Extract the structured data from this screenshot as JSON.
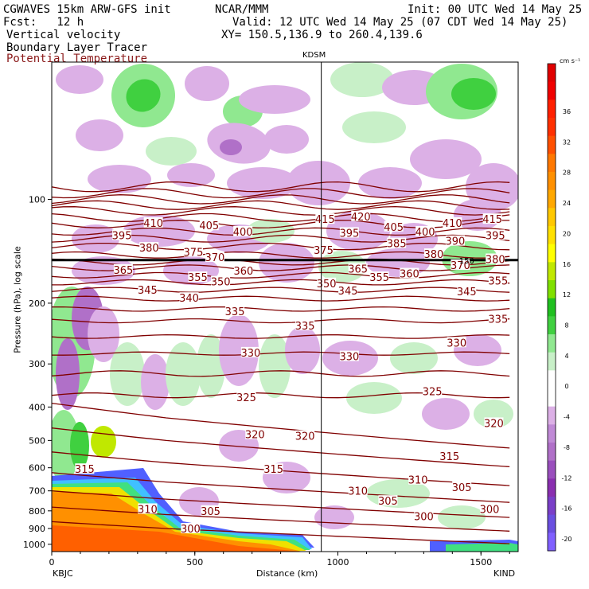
{
  "header": {
    "model": "CGWAVES 15km ARW-GFS init",
    "org": "NCAR/MMM",
    "init": "Init: 00 UTC Wed 14 May 25",
    "fcst": "Fcst:   12 h",
    "valid": "Valid: 12 UTC Wed 14 May 25 (07 CDT Wed 14 May 25)",
    "field1": "Vertical velocity",
    "field2": "Boundary Layer Tracer",
    "field3": "Potential Temperature",
    "xy": "XY= 150.5,136.9 to 260.4,139.6",
    "field3_color": "#8b1a1a"
  },
  "chart_data": {
    "type": "heatmap",
    "title": "",
    "xlabel": "Distance (km)",
    "ylabel": "Pressure (hPa), log scale",
    "x_ticks": [
      "0",
      "500",
      "1000",
      "1500"
    ],
    "x_tick_values": [
      0,
      500,
      1000,
      1500
    ],
    "y_ticks": [
      "100",
      "200",
      "300",
      "400",
      "500",
      "600",
      "700",
      "800",
      "900",
      "1000"
    ],
    "y_tick_values": [
      100,
      200,
      300,
      400,
      500,
      600,
      700,
      800,
      900,
      1000
    ],
    "xlim": [
      0,
      1630
    ],
    "ylim_log_pressure": [
      40,
      1050
    ],
    "y_scale": "log",
    "left_endpoint": "KBJC",
    "right_endpoint": "KIND",
    "marker_label": "KDSM",
    "marker_x": 942,
    "tropopause_label": "150",
    "theta_labels": [
      {
        "v": "410",
        "x": 355,
        "p": 117
      },
      {
        "v": "405",
        "x": 550,
        "p": 119
      },
      {
        "v": "400",
        "x": 668,
        "p": 124
      },
      {
        "v": "395",
        "x": 245,
        "p": 127
      },
      {
        "v": "380",
        "x": 340,
        "p": 138
      },
      {
        "v": "375",
        "x": 495,
        "p": 142
      },
      {
        "v": "370",
        "x": 570,
        "p": 147
      },
      {
        "v": "365",
        "x": 250,
        "p": 160
      },
      {
        "v": "360",
        "x": 670,
        "p": 161
      },
      {
        "v": "355",
        "x": 510,
        "p": 168
      },
      {
        "v": "350",
        "x": 590,
        "p": 173
      },
      {
        "v": "345",
        "x": 335,
        "p": 183
      },
      {
        "v": "340",
        "x": 480,
        "p": 193
      },
      {
        "v": "335",
        "x": 640,
        "p": 211
      },
      {
        "v": "330",
        "x": 695,
        "p": 278
      },
      {
        "v": "325",
        "x": 680,
        "p": 375
      },
      {
        "v": "320",
        "x": 710,
        "p": 480
      },
      {
        "v": "315",
        "x": 775,
        "p": 605
      },
      {
        "v": "315",
        "x": 115,
        "p": 605
      },
      {
        "v": "310",
        "x": 335,
        "p": 790
      },
      {
        "v": "305",
        "x": 555,
        "p": 800
      },
      {
        "v": "300",
        "x": 485,
        "p": 900
      },
      {
        "v": "415",
        "x": 955,
        "p": 114
      },
      {
        "v": "420",
        "x": 1080,
        "p": 112
      },
      {
        "v": "395",
        "x": 1040,
        "p": 125
      },
      {
        "v": "405",
        "x": 1195,
        "p": 120
      },
      {
        "v": "400",
        "x": 1305,
        "p": 124
      },
      {
        "v": "385",
        "x": 1205,
        "p": 134
      },
      {
        "v": "375",
        "x": 950,
        "p": 140
      },
      {
        "v": "365",
        "x": 1070,
        "p": 159
      },
      {
        "v": "355",
        "x": 1145,
        "p": 168
      },
      {
        "v": "360",
        "x": 1250,
        "p": 164
      },
      {
        "v": "345",
        "x": 1035,
        "p": 184
      },
      {
        "v": "350",
        "x": 960,
        "p": 175
      },
      {
        "v": "335",
        "x": 885,
        "p": 232
      },
      {
        "v": "330",
        "x": 1040,
        "p": 285
      },
      {
        "v": "325",
        "x": 1330,
        "p": 360
      },
      {
        "v": "320",
        "x": 885,
        "p": 485
      },
      {
        "v": "315",
        "x": 1390,
        "p": 555
      },
      {
        "v": "310",
        "x": 1070,
        "p": 700
      },
      {
        "v": "310",
        "x": 1280,
        "p": 650
      },
      {
        "v": "305",
        "x": 1175,
        "p": 748
      },
      {
        "v": "300",
        "x": 1300,
        "p": 830
      },
      {
        "v": "410",
        "x": 1400,
        "p": 117
      },
      {
        "v": "415",
        "x": 1540,
        "p": 114
      },
      {
        "v": "390",
        "x": 1410,
        "p": 132
      },
      {
        "v": "395",
        "x": 1550,
        "p": 127
      },
      {
        "v": "380",
        "x": 1335,
        "p": 144
      },
      {
        "v": "370",
        "x": 1428,
        "p": 155
      },
      {
        "v": "380",
        "x": 1550,
        "p": 149
      },
      {
        "v": "355",
        "x": 1560,
        "p": 172
      },
      {
        "v": "345",
        "x": 1450,
        "p": 185
      },
      {
        "v": "335",
        "x": 1560,
        "p": 222
      },
      {
        "v": "330",
        "x": 1415,
        "p": 260
      },
      {
        "v": "320",
        "x": 1545,
        "p": 445
      },
      {
        "v": "305",
        "x": 1433,
        "p": 683
      },
      {
        "v": "300",
        "x": 1530,
        "p": 790
      },
      {
        "v": "325",
        "x": 1675,
        "p": 345
      }
    ],
    "colorbar": {
      "unit": "cm s⁻¹",
      "labels": [
        "36",
        "32",
        "28",
        "24",
        "20",
        "16",
        "12",
        "8",
        "4",
        "0",
        "-4",
        "-8",
        "-12",
        "-16",
        "-20"
      ],
      "colors": [
        "#8060ff",
        "#6a4fe0",
        "#7a3fc8",
        "#8a2fb0",
        "#9a4fbd",
        "#b070c8",
        "#c08ad6",
        "#dcb0e6",
        "#ffffff",
        "#ffffff",
        "#c8f0c8",
        "#90e890",
        "#40d040",
        "#20c020",
        "#80e000",
        "#c0e800",
        "#ffff00",
        "#ffe000",
        "#ffc800",
        "#ffa800",
        "#ff9000",
        "#ff7800",
        "#ff5000",
        "#ff3000",
        "#ff2000",
        "#f00000",
        "#e00000"
      ]
    }
  }
}
